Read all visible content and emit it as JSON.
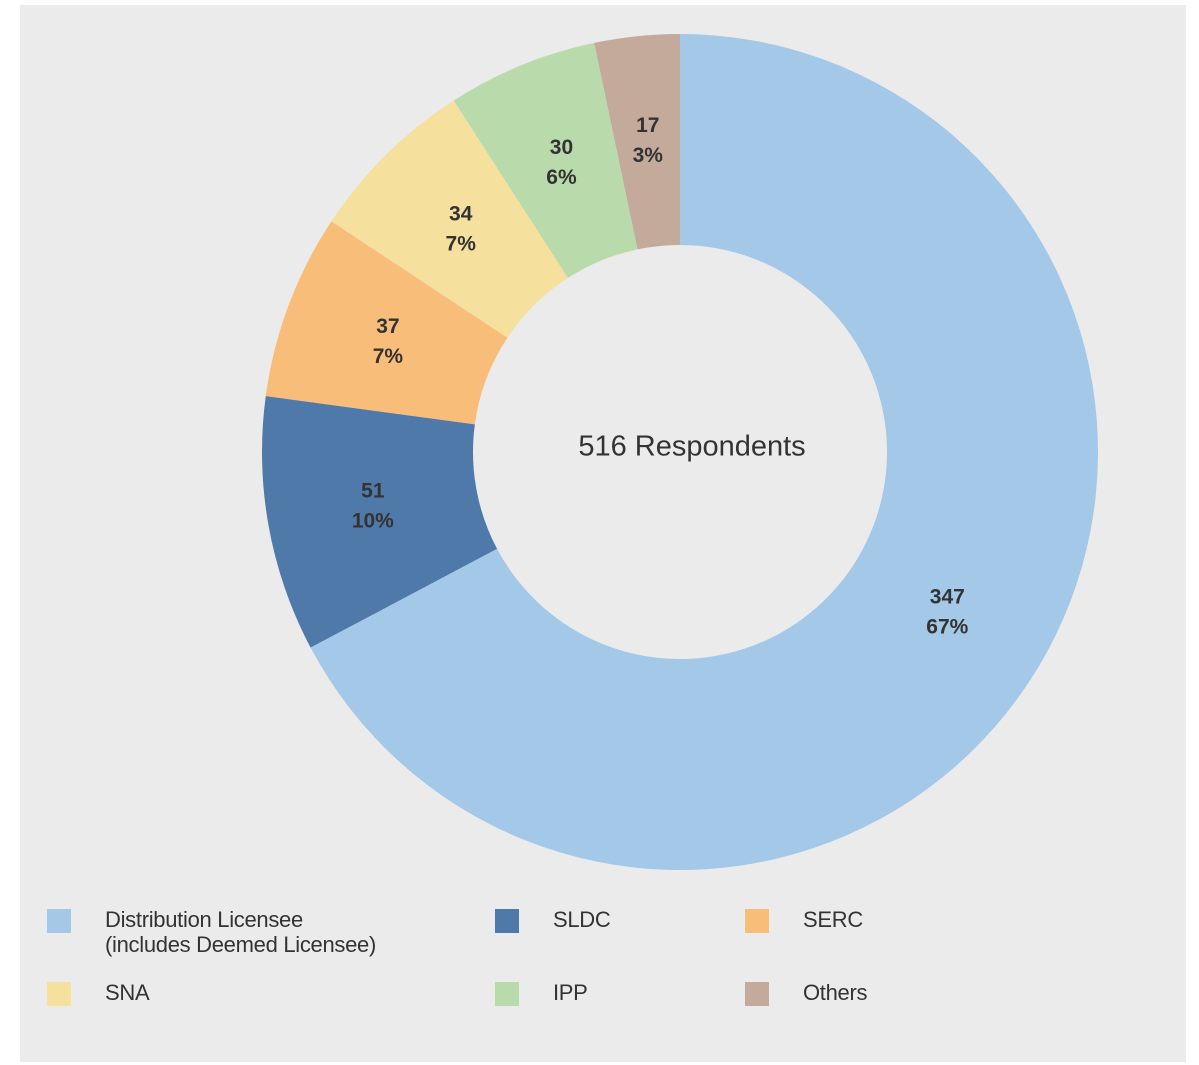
{
  "chart_data": {
    "type": "donut",
    "center_label": "516 Respondents",
    "categories": [
      "Distribution Licensee\n(includes Deemed Licensee)",
      "SLDC",
      "SERC",
      "SNA",
      "IPP",
      "Others"
    ],
    "values": [
      347,
      51,
      37,
      34,
      30,
      17
    ],
    "percent_labels": [
      "67%",
      "10%",
      "7%",
      "7%",
      "6%",
      "3%"
    ],
    "colors": [
      "#a3c8e8",
      "#4f79a8",
      "#f9bd7a",
      "#f5e09e",
      "#b9dbab",
      "#c4aa9b"
    ],
    "legend": "bottom"
  }
}
